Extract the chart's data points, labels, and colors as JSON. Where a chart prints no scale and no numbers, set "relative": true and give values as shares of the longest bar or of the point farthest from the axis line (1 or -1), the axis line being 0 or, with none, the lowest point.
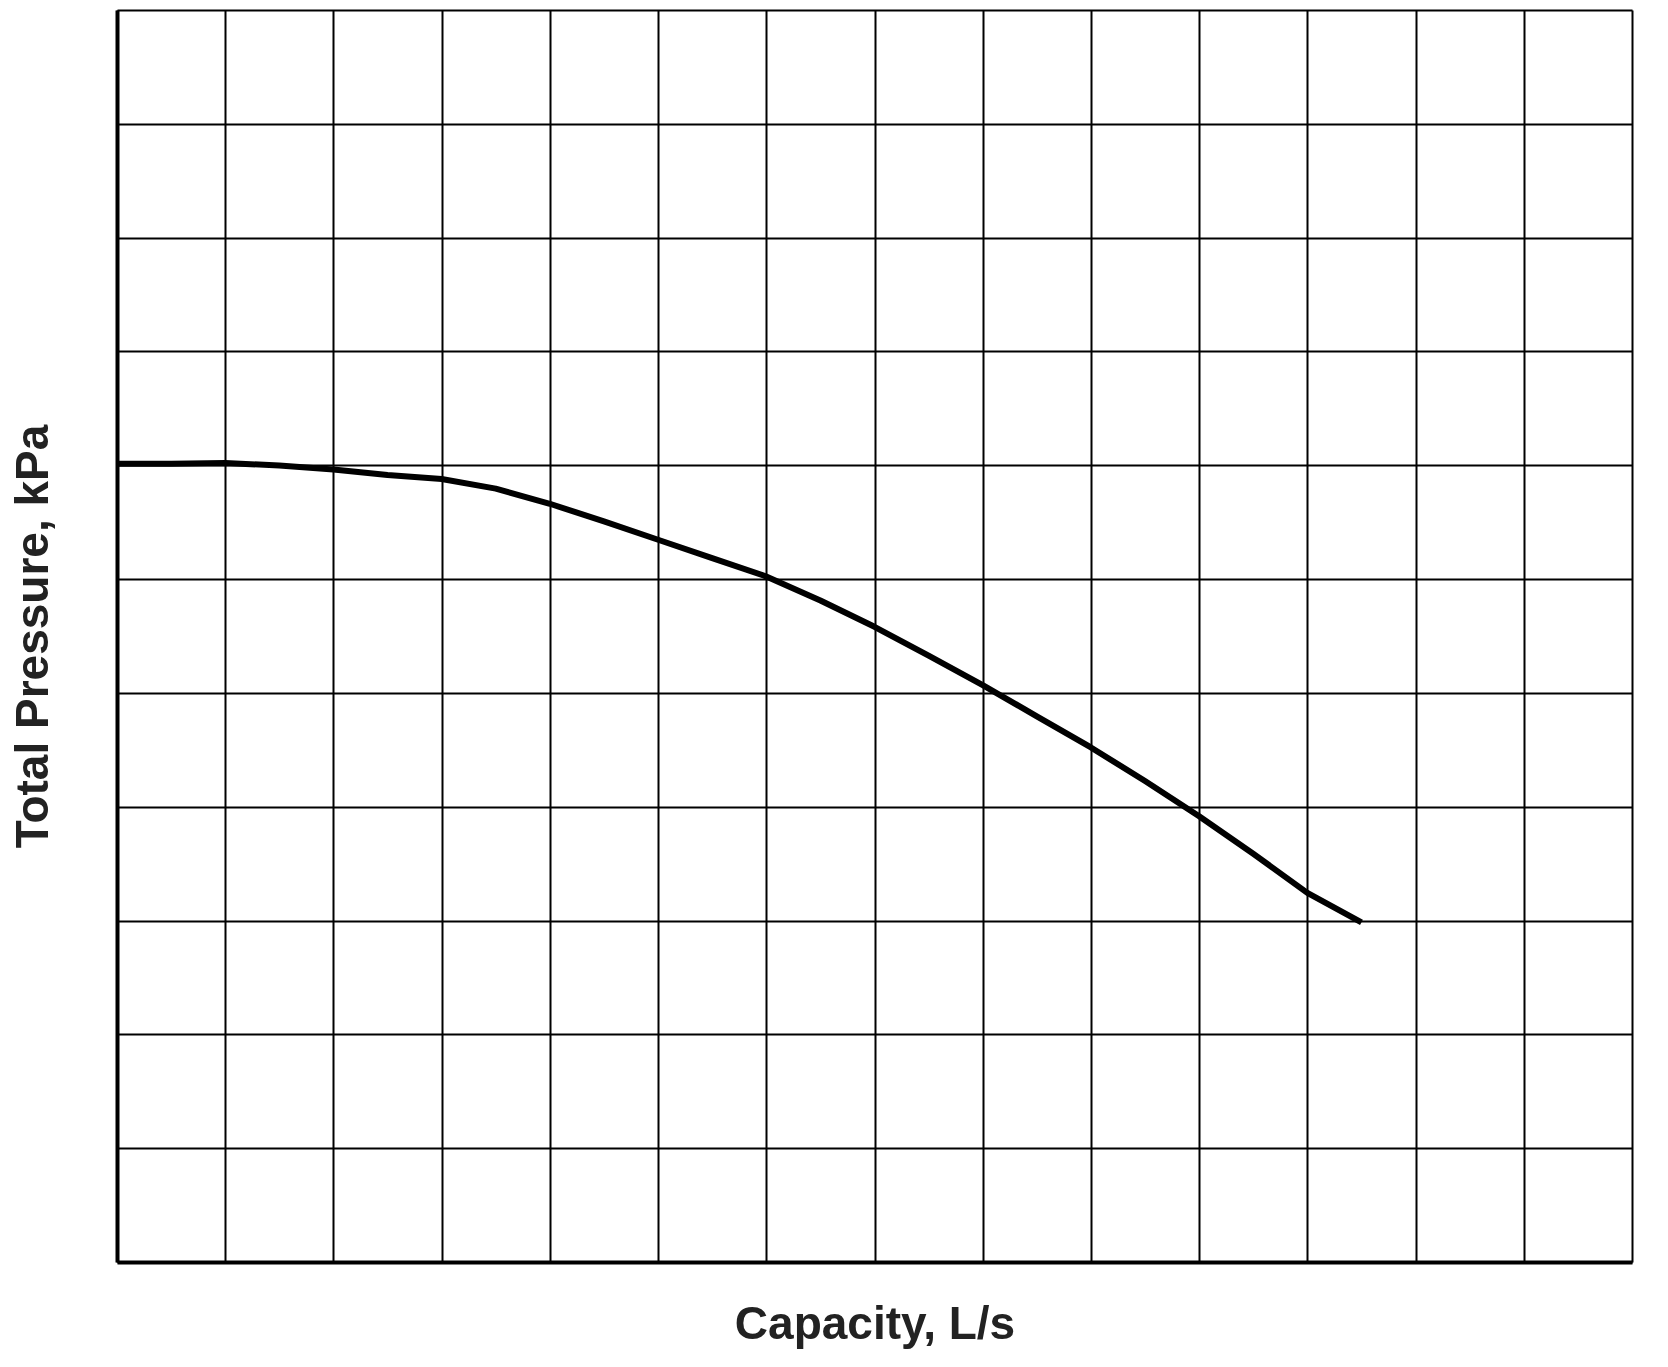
{
  "chart_data": {
    "type": "line",
    "relative": true,
    "xlabel": "Capacity, L/s",
    "ylabel": "Total Pressure, kPa",
    "categories": [
      null,
      null,
      null,
      null,
      null,
      null,
      null,
      null,
      null,
      null,
      null,
      null,
      null,
      null,
      null,
      null,
      null,
      null,
      null,
      null,
      null,
      null,
      null,
      null,
      null,
      null,
      null,
      null,
      null
    ],
    "series": [
      {
        "color": "#000000",
        "values": [
          0.999,
          0.999,
          1,
          0.997,
          0.992,
          0.985,
          0.98,
          0.968,
          0.949,
          0.927,
          0.904,
          0.881,
          0.858,
          0.828,
          0.795,
          0.759,
          0.722,
          0.683,
          0.644,
          0.602,
          0.558,
          0.511,
          0.462,
          0.425,
          null,
          null,
          null,
          null,
          null
        ]
      }
    ],
    "grid": true,
    "marker": "none",
    "line_style": "solid"
  }
}
